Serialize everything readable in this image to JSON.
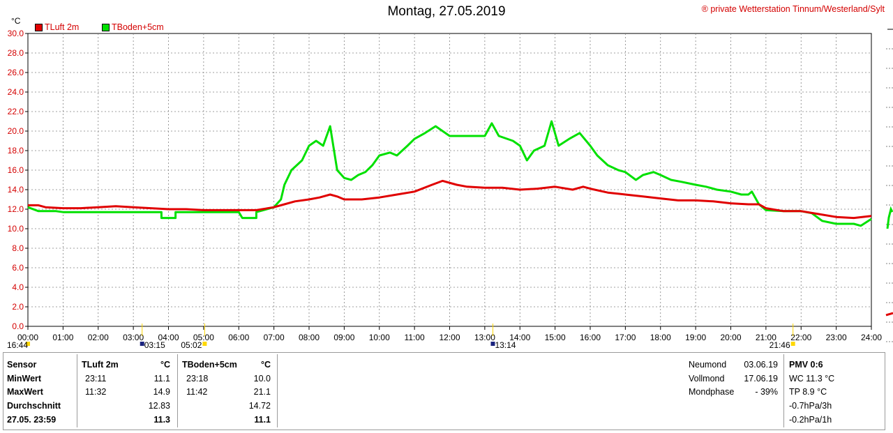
{
  "header": {
    "title": "Montag, 27.05.2019",
    "credit": "® private Wetterstation Tinnum/Westerland/Sylt",
    "unit": "°C"
  },
  "chart_data": {
    "type": "line",
    "title": "Montag, 27.05.2019",
    "ylabel": "°C",
    "ylim": [
      0,
      30
    ],
    "xlim": [
      0,
      24
    ],
    "grid": true,
    "legend": "top-left",
    "y_ticks": [
      "0.0",
      "2.0",
      "4.0",
      "6.0",
      "8.0",
      "10.0",
      "12.0",
      "14.0",
      "16.0",
      "18.0",
      "20.0",
      "22.0",
      "24.0",
      "26.0",
      "28.0",
      "30.0"
    ],
    "x_ticks": [
      "00:00",
      "01:00",
      "02:00",
      "03:00",
      "04:00",
      "05:00",
      "06:00",
      "07:00",
      "08:00",
      "09:00",
      "10:00",
      "11:00",
      "12:00",
      "13:00",
      "14:00",
      "15:00",
      "16:00",
      "17:00",
      "18:00",
      "19:00",
      "20:00",
      "21:00",
      "22:00",
      "23:00",
      "24:00"
    ],
    "markers": [
      "16:44",
      "03:15",
      "05:02",
      "13:14",
      "21:46"
    ],
    "series": [
      {
        "name": "TLuft 2m",
        "color": "#e00000",
        "points": [
          [
            0,
            12.4
          ],
          [
            0.3,
            12.4
          ],
          [
            0.5,
            12.2
          ],
          [
            1,
            12.1
          ],
          [
            1.5,
            12.1
          ],
          [
            2,
            12.2
          ],
          [
            2.5,
            12.3
          ],
          [
            3,
            12.2
          ],
          [
            3.5,
            12.1
          ],
          [
            4,
            12.0
          ],
          [
            4.5,
            12.0
          ],
          [
            5,
            11.9
          ],
          [
            5.5,
            11.9
          ],
          [
            6,
            11.9
          ],
          [
            6.5,
            11.9
          ],
          [
            7,
            12.2
          ],
          [
            7.3,
            12.5
          ],
          [
            7.6,
            12.8
          ],
          [
            8,
            13.0
          ],
          [
            8.3,
            13.2
          ],
          [
            8.6,
            13.5
          ],
          [
            8.8,
            13.3
          ],
          [
            9,
            13.0
          ],
          [
            9.5,
            13.0
          ],
          [
            10,
            13.2
          ],
          [
            10.5,
            13.5
          ],
          [
            11,
            13.8
          ],
          [
            11.5,
            14.5
          ],
          [
            11.8,
            14.9
          ],
          [
            12.2,
            14.5
          ],
          [
            12.5,
            14.3
          ],
          [
            13,
            14.2
          ],
          [
            13.5,
            14.2
          ],
          [
            14,
            14.0
          ],
          [
            14.5,
            14.1
          ],
          [
            15,
            14.3
          ],
          [
            15.5,
            14.0
          ],
          [
            15.8,
            14.3
          ],
          [
            16,
            14.1
          ],
          [
            16.5,
            13.7
          ],
          [
            17,
            13.5
          ],
          [
            17.5,
            13.3
          ],
          [
            18,
            13.1
          ],
          [
            18.5,
            12.9
          ],
          [
            19,
            12.9
          ],
          [
            19.5,
            12.8
          ],
          [
            20,
            12.6
          ],
          [
            20.5,
            12.5
          ],
          [
            20.8,
            12.5
          ],
          [
            21,
            12.1
          ],
          [
            21.5,
            11.8
          ],
          [
            22,
            11.8
          ],
          [
            22.5,
            11.5
          ],
          [
            23,
            11.2
          ],
          [
            23.5,
            11.1
          ],
          [
            24,
            11.3
          ]
        ]
      },
      {
        "name": "TBoden+5cm",
        "color": "#00e000",
        "points": [
          [
            0,
            12.2
          ],
          [
            0.3,
            11.8
          ],
          [
            0.8,
            11.8
          ],
          [
            1,
            11.7
          ],
          [
            2,
            11.7
          ],
          [
            3,
            11.7
          ],
          [
            3.8,
            11.7
          ],
          [
            3.8,
            11.1
          ],
          [
            4.2,
            11.1
          ],
          [
            4.2,
            11.7
          ],
          [
            5,
            11.7
          ],
          [
            6,
            11.7
          ],
          [
            6.1,
            11.1
          ],
          [
            6.5,
            11.1
          ],
          [
            6.5,
            11.7
          ],
          [
            7,
            12.2
          ],
          [
            7.2,
            13.0
          ],
          [
            7.3,
            14.5
          ],
          [
            7.5,
            16.0
          ],
          [
            7.8,
            17.0
          ],
          [
            8,
            18.5
          ],
          [
            8.2,
            19.0
          ],
          [
            8.4,
            18.5
          ],
          [
            8.6,
            20.5
          ],
          [
            8.8,
            16.0
          ],
          [
            9,
            15.2
          ],
          [
            9.2,
            15.0
          ],
          [
            9.4,
            15.5
          ],
          [
            9.6,
            15.8
          ],
          [
            9.8,
            16.5
          ],
          [
            10,
            17.5
          ],
          [
            10.3,
            17.8
          ],
          [
            10.5,
            17.5
          ],
          [
            10.8,
            18.5
          ],
          [
            11,
            19.2
          ],
          [
            11.3,
            19.8
          ],
          [
            11.6,
            20.5
          ],
          [
            11.8,
            20.0
          ],
          [
            12,
            19.5
          ],
          [
            12.5,
            19.5
          ],
          [
            13,
            19.5
          ],
          [
            13.2,
            20.8
          ],
          [
            13.4,
            19.5
          ],
          [
            13.8,
            19.0
          ],
          [
            14,
            18.5
          ],
          [
            14.2,
            17.0
          ],
          [
            14.4,
            18.0
          ],
          [
            14.7,
            18.5
          ],
          [
            14.9,
            21.0
          ],
          [
            15.1,
            18.5
          ],
          [
            15.4,
            19.2
          ],
          [
            15.7,
            19.8
          ],
          [
            16,
            18.5
          ],
          [
            16.2,
            17.5
          ],
          [
            16.5,
            16.5
          ],
          [
            16.8,
            16.0
          ],
          [
            17,
            15.8
          ],
          [
            17.3,
            15.0
          ],
          [
            17.5,
            15.5
          ],
          [
            17.8,
            15.8
          ],
          [
            18,
            15.5
          ],
          [
            18.3,
            15.0
          ],
          [
            18.6,
            14.8
          ],
          [
            19,
            14.5
          ],
          [
            19.3,
            14.3
          ],
          [
            19.6,
            14.0
          ],
          [
            20,
            13.8
          ],
          [
            20.3,
            13.5
          ],
          [
            20.5,
            13.5
          ],
          [
            20.6,
            13.8
          ],
          [
            20.8,
            12.5
          ],
          [
            21,
            11.9
          ],
          [
            21.5,
            11.8
          ],
          [
            22,
            11.8
          ],
          [
            22.3,
            11.6
          ],
          [
            22.6,
            10.8
          ],
          [
            23,
            10.5
          ],
          [
            23.5,
            10.5
          ],
          [
            23.7,
            10.3
          ],
          [
            24,
            11.0
          ]
        ]
      }
    ]
  },
  "table": {
    "row_labels": [
      "Sensor",
      "MinWert",
      "MaxWert",
      "Durchschnitt",
      "27.05. 23:59"
    ],
    "col1": {
      "header": "TLuft 2m",
      "unit": "°C",
      "min_time": "23:11",
      "min_val": "11.1",
      "max_time": "11:32",
      "max_val": "14.9",
      "avg": "12.83",
      "current": "11.3"
    },
    "col2": {
      "header": "TBoden+5cm",
      "unit": "°C",
      "min_time": "23:18",
      "min_val": "10.0",
      "max_time": "11:42",
      "max_val": "21.1",
      "avg": "14.72",
      "current": "11.1"
    },
    "moon": {
      "new_label": "Neumond",
      "new_date": "03.06.19",
      "full_label": "Vollmond",
      "full_date": "17.06.19",
      "phase_label": "Mondphase",
      "phase_value": "- 39%"
    },
    "pmv": {
      "title": "PMV 0:6",
      "wc": "WC 11.3 °C",
      "tp": "TP 8.9 °C",
      "p3h": "-0.7hPa/3h",
      "p1h": "-0.2hPa/1h"
    }
  }
}
